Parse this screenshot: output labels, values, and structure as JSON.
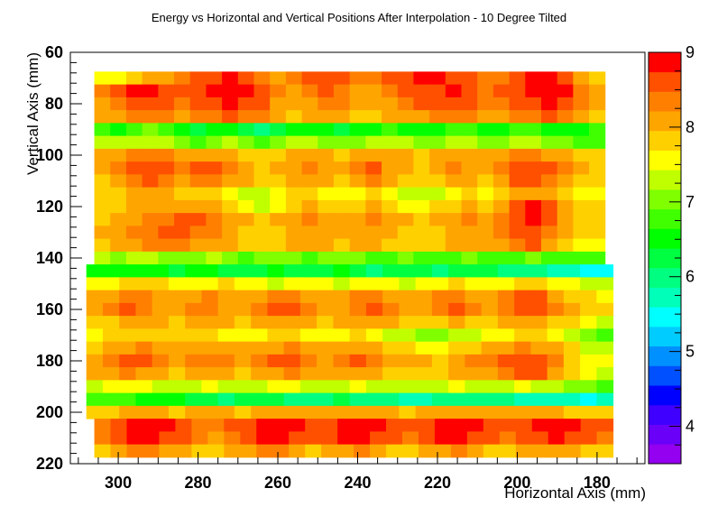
{
  "chart_data": {
    "type": "heatmap",
    "title": "Energy vs Horizontal and Vertical Positions After Interpolation - 10 Degree Tilted",
    "xlabel": "Horizontal Axis (mm)",
    "ylabel": "Vertical Axis (mm)",
    "xlim": [
      312,
      168
    ],
    "ylim": [
      220,
      60
    ],
    "x_reversed": true,
    "y_reversed": true,
    "x_ticks": [
      300,
      280,
      260,
      240,
      220,
      200,
      180
    ],
    "y_ticks": [
      60,
      80,
      100,
      120,
      140,
      160,
      180,
      200,
      220
    ],
    "colorbar": {
      "min": 3.5,
      "max": 9.0,
      "ticks": [
        4,
        5,
        6,
        7,
        8,
        9
      ]
    },
    "palette": [
      "#9400f0",
      "#6a00f8",
      "#4000ff",
      "#0000ff",
      "#0050ff",
      "#0090ff",
      "#00ccff",
      "#00ffff",
      "#00ffb8",
      "#00ff80",
      "#00ff40",
      "#00ff00",
      "#40ff00",
      "#7fff00",
      "#c0ff00",
      "#ffff00",
      "#ffd000",
      "#ffa500",
      "#ff8000",
      "#ff5000",
      "#ff0000"
    ],
    "rows": [
      {
        "y": 70,
        "x_from": 306,
        "x_to": 178,
        "values": [
          7.6,
          7.6,
          7.9,
          8.0,
          8.2,
          8.4,
          8.6,
          8.7,
          8.8,
          8.6,
          8.4,
          8.2,
          8.3,
          8.5,
          8.7,
          8.6,
          8.4,
          8.3,
          8.5,
          8.6,
          8.8,
          8.9,
          8.7,
          8.5,
          8.3,
          8.4,
          8.6,
          8.8,
          8.9,
          8.7,
          8.2,
          7.8
        ]
      },
      {
        "y": 75,
        "x_from": 306,
        "x_to": 178,
        "values": [
          8.4,
          8.6,
          8.8,
          8.9,
          8.7,
          8.5,
          8.6,
          8.8,
          8.9,
          8.8,
          8.6,
          8.3,
          8.1,
          8.3,
          8.5,
          8.4,
          8.2,
          8.1,
          8.3,
          8.5,
          8.6,
          8.7,
          8.8,
          8.6,
          8.4,
          8.5,
          8.7,
          8.9,
          8.9,
          8.8,
          8.4,
          8.0
        ]
      },
      {
        "y": 80,
        "x_from": 306,
        "x_to": 178,
        "values": [
          8.2,
          8.4,
          8.6,
          8.7,
          8.6,
          8.4,
          8.5,
          8.7,
          8.8,
          8.7,
          8.5,
          8.2,
          8.0,
          8.2,
          8.4,
          8.3,
          8.1,
          8.0,
          8.2,
          8.3,
          8.5,
          8.6,
          8.7,
          8.5,
          8.3,
          8.4,
          8.6,
          8.7,
          8.8,
          8.6,
          8.3,
          8.0
        ]
      },
      {
        "y": 85,
        "x_from": 306,
        "x_to": 178,
        "values": [
          8.0,
          8.1,
          8.3,
          8.4,
          8.3,
          8.2,
          8.3,
          8.4,
          8.5,
          8.4,
          8.3,
          8.1,
          7.9,
          8.0,
          8.2,
          8.1,
          7.9,
          7.9,
          8.0,
          8.1,
          8.2,
          8.3,
          8.4,
          8.3,
          8.1,
          8.2,
          8.3,
          8.4,
          8.5,
          8.3,
          8.1,
          7.9
        ]
      },
      {
        "y": 90,
        "x_from": 306,
        "x_to": 178,
        "values": [
          6.7,
          6.6,
          6.9,
          7.0,
          6.7,
          6.4,
          6.3,
          6.5,
          6.6,
          6.2,
          6.1,
          6.3,
          6.5,
          6.6,
          6.4,
          6.3,
          6.4,
          6.6,
          6.7,
          6.5,
          6.4,
          6.6,
          6.8,
          6.7,
          6.5,
          6.6,
          6.7,
          6.8,
          6.6,
          6.5,
          6.6,
          6.7
        ]
      },
      {
        "y": 95,
        "x_from": 306,
        "x_to": 178,
        "values": [
          7.3,
          7.2,
          7.3,
          7.4,
          7.2,
          7.0,
          6.9,
          7.1,
          7.2,
          7.0,
          6.9,
          7.0,
          7.2,
          7.3,
          7.1,
          7.0,
          7.1,
          7.2,
          7.3,
          7.2,
          7.0,
          7.1,
          7.3,
          7.2,
          7.0,
          7.1,
          7.2,
          7.3,
          7.1,
          7.0,
          6.8,
          6.7
        ]
      },
      {
        "y": 100,
        "x_from": 306,
        "x_to": 178,
        "values": [
          8.0,
          8.1,
          8.3,
          8.4,
          8.3,
          8.1,
          8.0,
          8.2,
          8.1,
          7.9,
          7.8,
          7.9,
          8.1,
          8.2,
          8.0,
          7.9,
          8.0,
          8.1,
          8.2,
          8.1,
          7.9,
          8.0,
          8.2,
          8.1,
          8.0,
          8.1,
          8.3,
          8.4,
          8.2,
          8.1,
          7.9,
          7.8
        ]
      },
      {
        "y": 105,
        "x_from": 306,
        "x_to": 178,
        "values": [
          8.1,
          8.4,
          8.6,
          8.7,
          8.5,
          8.3,
          8.5,
          8.7,
          8.4,
          8.1,
          7.9,
          8.0,
          8.2,
          8.3,
          8.1,
          8.0,
          8.3,
          8.5,
          8.2,
          8.0,
          7.9,
          8.1,
          8.3,
          8.2,
          8.0,
          8.4,
          8.6,
          8.7,
          8.6,
          8.3,
          8.0,
          7.9
        ]
      },
      {
        "y": 110,
        "x_from": 306,
        "x_to": 178,
        "values": [
          7.9,
          8.2,
          8.4,
          8.5,
          8.4,
          8.2,
          8.3,
          8.4,
          8.2,
          8.0,
          7.8,
          7.9,
          8.0,
          8.1,
          8.0,
          7.8,
          8.1,
          8.3,
          8.1,
          7.9,
          7.8,
          7.9,
          8.1,
          8.0,
          7.9,
          8.2,
          8.5,
          8.6,
          8.4,
          8.2,
          7.9,
          7.8
        ]
      },
      {
        "y": 115,
        "x_from": 306,
        "x_to": 178,
        "values": [
          7.7,
          7.8,
          8.0,
          8.1,
          8.0,
          7.8,
          7.9,
          7.8,
          7.6,
          7.4,
          7.3,
          7.5,
          7.7,
          7.8,
          7.6,
          7.5,
          7.6,
          7.7,
          7.5,
          7.3,
          7.2,
          7.4,
          7.6,
          7.7,
          7.6,
          7.9,
          8.1,
          8.2,
          8.0,
          7.8,
          7.6,
          7.5
        ]
      },
      {
        "y": 120,
        "x_from": 306,
        "x_to": 178,
        "values": [
          7.8,
          7.9,
          8.1,
          8.2,
          8.1,
          8.0,
          8.1,
          8.0,
          7.8,
          7.6,
          7.4,
          7.5,
          7.8,
          8.0,
          7.9,
          7.8,
          7.9,
          8.0,
          7.8,
          7.6,
          7.5,
          7.7,
          7.9,
          8.0,
          7.9,
          8.2,
          8.6,
          8.8,
          8.5,
          8.1,
          7.8,
          7.7
        ]
      },
      {
        "y": 125,
        "x_from": 306,
        "x_to": 178,
        "values": [
          7.9,
          8.0,
          8.2,
          8.3,
          8.4,
          8.5,
          8.5,
          8.4,
          8.2,
          8.0,
          7.9,
          8.0,
          8.2,
          8.3,
          8.2,
          8.1,
          8.2,
          8.3,
          8.1,
          8.0,
          7.9,
          8.0,
          8.2,
          8.3,
          8.2,
          8.4,
          8.7,
          8.9,
          8.6,
          8.2,
          7.9,
          7.8
        ]
      },
      {
        "y": 130,
        "x_from": 306,
        "x_to": 178,
        "values": [
          8.0,
          8.1,
          8.3,
          8.4,
          8.5,
          8.6,
          8.4,
          8.3,
          8.1,
          7.9,
          7.8,
          7.9,
          8.1,
          8.2,
          8.1,
          8.0,
          8.1,
          8.2,
          8.0,
          7.9,
          7.8,
          7.9,
          8.1,
          8.2,
          8.1,
          8.3,
          8.5,
          8.6,
          8.4,
          8.1,
          7.8,
          7.7
        ]
      },
      {
        "y": 135,
        "x_from": 306,
        "x_to": 178,
        "values": [
          7.9,
          8.0,
          8.2,
          8.3,
          8.3,
          8.4,
          8.2,
          8.1,
          8.0,
          7.8,
          7.7,
          7.8,
          8.0,
          8.1,
          8.0,
          7.9,
          8.0,
          8.1,
          7.9,
          7.8,
          7.7,
          7.8,
          8.0,
          8.1,
          8.0,
          8.2,
          8.4,
          8.5,
          8.2,
          7.9,
          7.6,
          7.5
        ]
      },
      {
        "y": 140,
        "x_from": 306,
        "x_to": 178,
        "values": [
          7.2,
          7.1,
          7.2,
          7.3,
          7.1,
          7.0,
          7.1,
          7.2,
          7.0,
          6.9,
          7.0,
          7.1,
          7.0,
          6.9,
          7.0,
          7.1,
          7.0,
          6.8,
          6.9,
          7.0,
          6.9,
          6.8,
          6.9,
          7.0,
          6.9,
          6.8,
          6.9,
          7.0,
          6.8,
          6.7,
          6.8,
          6.7
        ]
      },
      {
        "y": 145,
        "x_from": 308,
        "x_to": 176,
        "values": [
          6.5,
          6.4,
          6.5,
          6.6,
          6.4,
          6.3,
          6.4,
          6.5,
          6.3,
          6.2,
          6.3,
          6.4,
          6.3,
          6.2,
          6.3,
          6.4,
          6.3,
          6.1,
          6.2,
          6.3,
          6.2,
          6.1,
          6.2,
          6.3,
          6.2,
          6.1,
          6.0,
          5.9,
          5.8,
          5.6,
          5.5,
          5.5
        ]
      },
      {
        "y": 150,
        "x_from": 308,
        "x_to": 176,
        "values": [
          7.5,
          7.6,
          7.7,
          7.8,
          7.7,
          7.6,
          7.5,
          7.6,
          7.7,
          7.6,
          7.5,
          7.4,
          7.5,
          7.6,
          7.5,
          7.4,
          7.5,
          7.6,
          7.5,
          7.4,
          7.5,
          7.6,
          7.7,
          7.6,
          7.5,
          7.6,
          7.7,
          7.8,
          7.6,
          7.5,
          7.4,
          7.3
        ]
      },
      {
        "y": 155,
        "x_from": 308,
        "x_to": 176,
        "values": [
          8.0,
          8.2,
          8.4,
          8.3,
          8.1,
          8.0,
          8.2,
          8.3,
          8.1,
          8.0,
          8.2,
          8.4,
          8.3,
          8.1,
          8.0,
          8.1,
          8.3,
          8.4,
          8.2,
          8.0,
          8.1,
          8.3,
          8.4,
          8.2,
          8.1,
          8.3,
          8.6,
          8.5,
          8.2,
          7.9,
          7.7,
          7.6
        ]
      },
      {
        "y": 160,
        "x_from": 308,
        "x_to": 176,
        "values": [
          8.1,
          8.3,
          8.5,
          8.4,
          8.2,
          8.1,
          8.3,
          8.4,
          8.2,
          8.1,
          8.3,
          8.5,
          8.6,
          8.3,
          8.1,
          8.2,
          8.4,
          8.5,
          8.3,
          8.1,
          8.2,
          8.4,
          8.5,
          8.3,
          8.2,
          8.4,
          8.7,
          8.6,
          8.3,
          8.0,
          7.8,
          7.7
        ]
      },
      {
        "y": 165,
        "x_from": 308,
        "x_to": 176,
        "values": [
          7.8,
          7.9,
          8.0,
          8.1,
          8.0,
          7.9,
          8.0,
          8.1,
          8.0,
          7.9,
          8.0,
          8.1,
          8.2,
          8.0,
          7.9,
          8.0,
          8.1,
          8.2,
          8.0,
          7.9,
          7.8,
          7.9,
          8.0,
          7.9,
          7.8,
          8.0,
          8.2,
          8.1,
          7.9,
          7.7,
          7.5,
          7.4
        ]
      },
      {
        "y": 170,
        "x_from": 308,
        "x_to": 176,
        "values": [
          7.6,
          7.7,
          7.8,
          7.9,
          7.8,
          7.7,
          7.8,
          7.7,
          7.6,
          7.5,
          7.6,
          7.7,
          7.8,
          7.6,
          7.5,
          7.6,
          7.7,
          7.6,
          7.4,
          7.3,
          7.1,
          7.0,
          7.2,
          7.4,
          7.5,
          7.6,
          7.8,
          7.7,
          7.5,
          7.2,
          7.0,
          6.9
        ]
      },
      {
        "y": 175,
        "x_from": 308,
        "x_to": 176,
        "values": [
          7.9,
          8.0,
          8.2,
          8.3,
          8.2,
          8.0,
          8.1,
          8.2,
          8.1,
          8.0,
          8.1,
          8.2,
          8.3,
          8.1,
          8.0,
          8.1,
          8.2,
          8.1,
          7.9,
          7.8,
          7.6,
          7.5,
          7.7,
          7.9,
          8.0,
          8.1,
          8.3,
          8.2,
          8.0,
          7.7,
          7.4,
          7.3
        ]
      },
      {
        "y": 180,
        "x_from": 308,
        "x_to": 176,
        "values": [
          8.2,
          8.4,
          8.6,
          8.5,
          8.3,
          8.1,
          8.3,
          8.4,
          8.3,
          8.1,
          8.3,
          8.5,
          8.6,
          8.4,
          8.2,
          8.3,
          8.5,
          8.4,
          8.2,
          8.1,
          8.0,
          7.9,
          8.1,
          8.3,
          8.4,
          8.5,
          8.7,
          8.6,
          8.3,
          7.9,
          7.6,
          7.5
        ]
      },
      {
        "y": 185,
        "x_from": 308,
        "x_to": 176,
        "values": [
          8.0,
          8.2,
          8.3,
          8.2,
          8.0,
          7.9,
          8.1,
          8.2,
          8.1,
          7.9,
          8.1,
          8.2,
          8.3,
          8.1,
          8.0,
          8.1,
          8.2,
          8.1,
          7.9,
          7.8,
          7.7,
          7.8,
          8.0,
          8.1,
          8.2,
          8.3,
          8.6,
          8.5,
          8.2,
          7.8,
          7.5,
          7.4
        ]
      },
      {
        "y": 190,
        "x_from": 308,
        "x_to": 176,
        "values": [
          7.4,
          7.5,
          7.6,
          7.5,
          7.4,
          7.3,
          7.4,
          7.5,
          7.4,
          7.3,
          7.4,
          7.5,
          7.6,
          7.4,
          7.3,
          7.4,
          7.5,
          7.4,
          7.3,
          7.2,
          7.3,
          7.4,
          7.5,
          7.4,
          7.3,
          7.4,
          7.5,
          7.4,
          7.3,
          7.1,
          7.0,
          6.9
        ]
      },
      {
        "y": 195,
        "x_from": 308,
        "x_to": 176,
        "values": [
          6.9,
          6.8,
          6.7,
          6.6,
          6.5,
          6.4,
          6.3,
          6.2,
          6.1,
          6.2,
          6.3,
          6.2,
          6.1,
          6.0,
          6.1,
          6.2,
          6.1,
          6.0,
          5.9,
          5.8,
          5.8,
          5.9,
          6.0,
          6.1,
          6.0,
          5.9,
          5.8,
          5.8,
          5.7,
          5.6,
          5.5,
          5.6
        ]
      },
      {
        "y": 200,
        "x_from": 308,
        "x_to": 176,
        "values": [
          7.8,
          7.9,
          8.0,
          8.1,
          8.0,
          7.9,
          8.0,
          8.1,
          8.0,
          7.9,
          8.0,
          8.1,
          8.2,
          8.1,
          8.0,
          8.1,
          8.2,
          8.1,
          8.0,
          7.9,
          8.0,
          8.1,
          8.2,
          8.1,
          8.0,
          8.1,
          8.2,
          8.1,
          8.0,
          7.9,
          7.8,
          7.8
        ]
      },
      {
        "y": 205,
        "x_from": 306,
        "x_to": 176,
        "values": [
          8.4,
          8.7,
          8.9,
          8.9,
          8.8,
          8.6,
          8.4,
          8.3,
          8.5,
          8.7,
          8.9,
          8.9,
          8.8,
          8.6,
          8.7,
          8.9,
          8.9,
          8.8,
          8.6,
          8.5,
          8.7,
          8.9,
          8.9,
          8.8,
          8.6,
          8.5,
          8.7,
          8.8,
          8.9,
          8.8,
          8.6,
          8.5
        ]
      },
      {
        "y": 210,
        "x_from": 306,
        "x_to": 176,
        "values": [
          8.3,
          8.6,
          8.8,
          8.9,
          8.7,
          8.5,
          8.3,
          8.2,
          8.4,
          8.6,
          8.8,
          8.9,
          8.7,
          8.5,
          8.6,
          8.8,
          8.9,
          8.7,
          8.5,
          8.4,
          8.6,
          8.8,
          8.9,
          8.7,
          8.5,
          8.4,
          8.6,
          8.7,
          8.8,
          8.7,
          8.5,
          8.4
        ]
      },
      {
        "y": 215,
        "x_from": 306,
        "x_to": 176,
        "values": [
          7.8,
          8.1,
          8.3,
          8.4,
          8.2,
          8.0,
          7.9,
          7.8,
          8.0,
          8.2,
          8.4,
          8.3,
          8.1,
          7.9,
          8.0,
          8.2,
          8.3,
          8.1,
          7.9,
          7.8,
          8.0,
          8.2,
          8.3,
          8.1,
          7.9,
          7.8,
          8.0,
          8.1,
          8.2,
          8.1,
          7.9,
          7.8
        ]
      }
    ]
  }
}
